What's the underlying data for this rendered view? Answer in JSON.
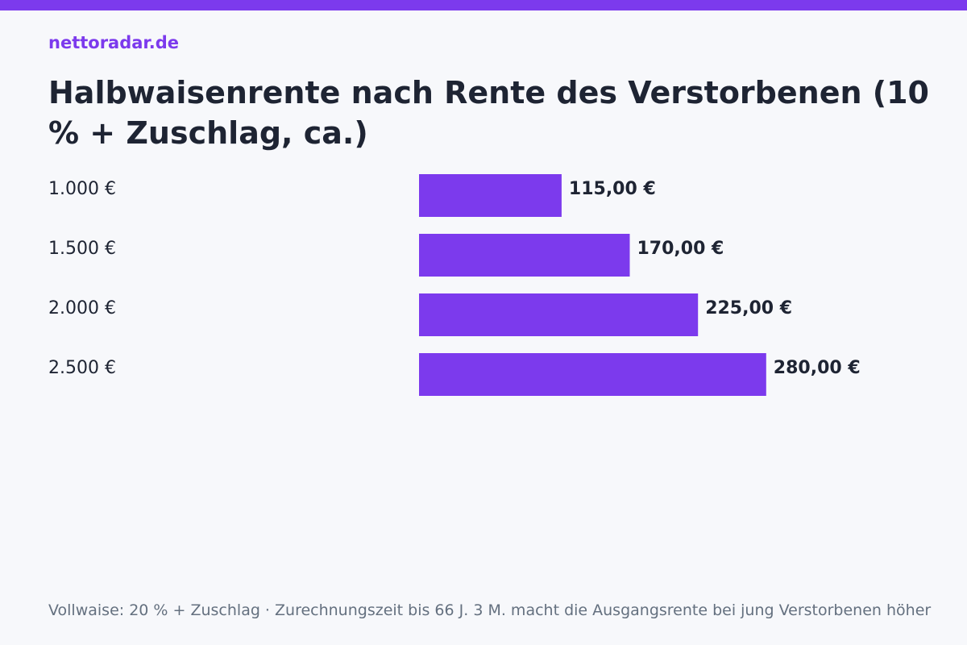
{
  "brand": "nettoradar.de",
  "title": "Halbwaisenrente nach Rente des Verstorbenen (10 % + Zuschlag, ca.)",
  "footnote": "Vollwaise: 20 % + Zuschlag · Zurechnungszeit bis 66 J. 3 M. macht die Ausgangsrente bei jung Verstorbenen höher",
  "colors": {
    "accent": "#7c3aed",
    "text": "#1e2433",
    "muted": "#64707f",
    "background": "#f7f8fb"
  },
  "chart_data": {
    "type": "bar",
    "orientation": "horizontal",
    "categories": [
      "1.000 €",
      "1.500 €",
      "2.000 €",
      "2.500 €"
    ],
    "values": [
      115,
      170,
      225,
      280
    ],
    "value_labels": [
      "115,00 €",
      "170,00 €",
      "225,00 €",
      "280,00 €"
    ],
    "xlim": [
      0,
      364
    ],
    "grid": false,
    "legend": "none"
  }
}
